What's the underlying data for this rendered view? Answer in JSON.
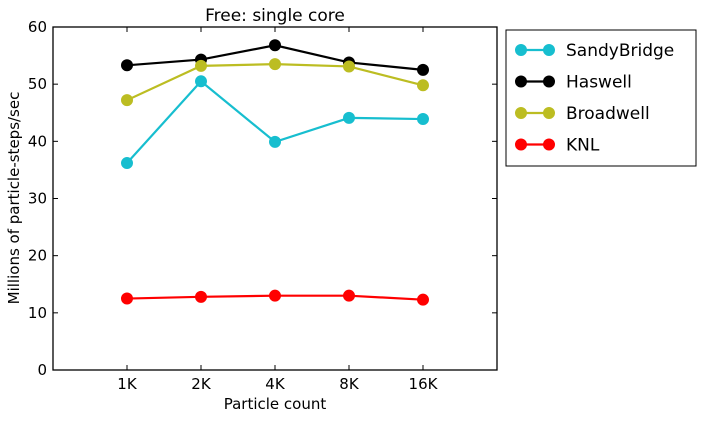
{
  "chart_data": {
    "type": "line",
    "title": "Free: single core",
    "xlabel": "Particle count",
    "ylabel": "Millions of particle-steps/sec",
    "categories": [
      "1K",
      "2K",
      "4K",
      "8K",
      "16K"
    ],
    "xlim": [
      -1,
      5
    ],
    "ylim": [
      0,
      60
    ],
    "yticks": [
      0,
      10,
      20,
      30,
      40,
      50,
      60
    ],
    "grid": false,
    "legend_position": "outside-right-top",
    "series": [
      {
        "name": "SandyBridge",
        "color": "#17becf",
        "values": [
          36.2,
          50.5,
          39.9,
          44.1,
          43.9
        ]
      },
      {
        "name": "Haswell",
        "color": "#000000",
        "values": [
          53.3,
          54.3,
          56.8,
          53.8,
          52.5
        ]
      },
      {
        "name": "Broadwell",
        "color": "#bcbd22",
        "values": [
          47.2,
          53.2,
          53.5,
          53.1,
          49.8
        ]
      },
      {
        "name": "KNL",
        "color": "#ff0000",
        "values": [
          12.5,
          12.8,
          13.0,
          13.0,
          12.3
        ]
      }
    ]
  }
}
